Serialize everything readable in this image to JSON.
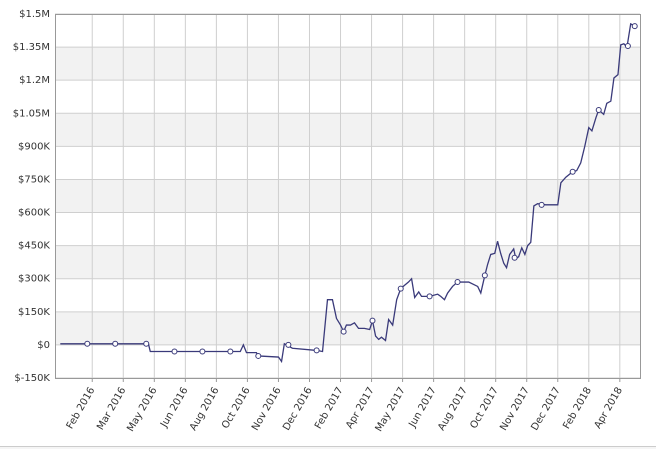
{
  "chart_data": {
    "type": "line",
    "xlim": [
      -0.2,
      18.65
    ],
    "xticks": [
      {
        "value": 1,
        "label": "Feb 2016"
      },
      {
        "value": 2,
        "label": "Mar 2016"
      },
      {
        "value": 3,
        "label": "May 2016"
      },
      {
        "value": 4,
        "label": "Jun 2016"
      },
      {
        "value": 5,
        "label": "Aug 2016"
      },
      {
        "value": 6,
        "label": "Oct 2016"
      },
      {
        "value": 7,
        "label": "Nov 2016"
      },
      {
        "value": 8,
        "label": "Dec 2016"
      },
      {
        "value": 9,
        "label": "Feb 2017"
      },
      {
        "value": 10,
        "label": "Apr 2017"
      },
      {
        "value": 11,
        "label": "May 2017"
      },
      {
        "value": 12,
        "label": "Jun 2017"
      },
      {
        "value": 13,
        "label": "Aug 2017"
      },
      {
        "value": 14,
        "label": "Oct 2017"
      },
      {
        "value": 15,
        "label": "Nov 2017"
      },
      {
        "value": 16,
        "label": "Dec 2017"
      },
      {
        "value": 17,
        "label": "Feb 2018"
      },
      {
        "value": 18,
        "label": "Apr 2018"
      }
    ],
    "ylim": [
      -150000,
      1500000
    ],
    "yticks": [
      {
        "value": -150000,
        "label": "$-150K"
      },
      {
        "value": 0,
        "label": "$0"
      },
      {
        "value": 150000,
        "label": "$150K"
      },
      {
        "value": 300000,
        "label": "$300K"
      },
      {
        "value": 450000,
        "label": "$450K"
      },
      {
        "value": 600000,
        "label": "$600K"
      },
      {
        "value": 750000,
        "label": "$750K"
      },
      {
        "value": 900000,
        "label": "$900K"
      },
      {
        "value": 1050000,
        "label": "$1.05M"
      },
      {
        "value": 1200000,
        "label": "$1.2M"
      },
      {
        "value": 1350000,
        "label": "$1.35M"
      },
      {
        "value": 1500000,
        "label": "$1.5M"
      }
    ],
    "grid": true,
    "series": [
      {
        "color": "#3a3a7a",
        "style": "line",
        "x": [
          -0.03,
          2.81,
          2.87,
          5.77,
          5.87,
          5.97,
          6.29,
          6.35,
          7.0,
          7.1,
          7.19,
          7.45,
          8.23,
          8.42,
          8.58,
          8.74,
          8.87,
          9.0,
          9.1,
          9.19,
          9.32,
          9.45,
          9.58,
          9.77,
          9.94,
          10.03,
          10.13,
          10.23,
          10.32,
          10.45,
          10.55,
          10.68,
          10.81,
          10.94,
          11.06,
          11.19,
          11.29,
          11.39,
          11.52,
          11.61,
          11.87,
          12.13,
          12.23,
          12.35,
          12.45,
          12.61,
          12.77,
          13.13,
          13.42,
          13.52,
          13.65,
          13.74,
          13.84,
          13.97,
          14.06,
          14.16,
          14.26,
          14.35,
          14.45,
          14.58,
          14.65,
          14.74,
          14.84,
          14.94,
          15.03,
          15.13,
          15.23,
          15.35,
          15.61,
          16.0,
          16.1,
          16.26,
          16.48,
          16.61,
          16.74,
          16.87,
          17.0,
          17.1,
          17.23,
          17.32,
          17.48,
          17.58,
          17.71,
          17.81,
          17.94,
          18.03,
          18.13,
          18.23,
          18.35,
          18.48
        ],
        "values": [
          5000,
          5000,
          -30000,
          -30000,
          0,
          -35000,
          -35000,
          -50000,
          -55000,
          -75000,
          5000,
          -15000,
          -25000,
          -30000,
          205000,
          205000,
          120000,
          90000,
          60000,
          90000,
          90000,
          100000,
          75000,
          75000,
          70000,
          110000,
          40000,
          25000,
          35000,
          20000,
          115000,
          90000,
          205000,
          255000,
          270000,
          285000,
          300000,
          215000,
          240000,
          220000,
          220000,
          230000,
          220000,
          205000,
          235000,
          265000,
          285000,
          285000,
          265000,
          235000,
          315000,
          365000,
          410000,
          415000,
          470000,
          415000,
          370000,
          350000,
          410000,
          435000,
          390000,
          400000,
          440000,
          410000,
          450000,
          465000,
          630000,
          640000,
          635000,
          635000,
          735000,
          760000,
          785000,
          790000,
          825000,
          900000,
          985000,
          970000,
          1030000,
          1065000,
          1045000,
          1095000,
          1105000,
          1210000,
          1225000,
          1360000,
          1365000,
          1350000,
          1455000,
          1445000
        ]
      },
      {
        "color": "#3a3a7a",
        "style": "markers",
        "x": [
          0.84,
          1.74,
          2.74,
          3.65,
          4.55,
          5.45,
          6.35,
          7.32,
          8.23,
          9.1,
          10.03,
          10.94,
          11.87,
          12.77,
          13.65,
          14.61,
          15.48,
          16.48,
          17.32,
          18.26,
          18.48
        ],
        "values": [
          5000,
          5000,
          5000,
          -30000,
          -30000,
          -30000,
          -50000,
          0,
          -25000,
          60000,
          110000,
          255000,
          220000,
          285000,
          315000,
          395000,
          635000,
          785000,
          1065000,
          1355000,
          1445000
        ]
      }
    ]
  }
}
